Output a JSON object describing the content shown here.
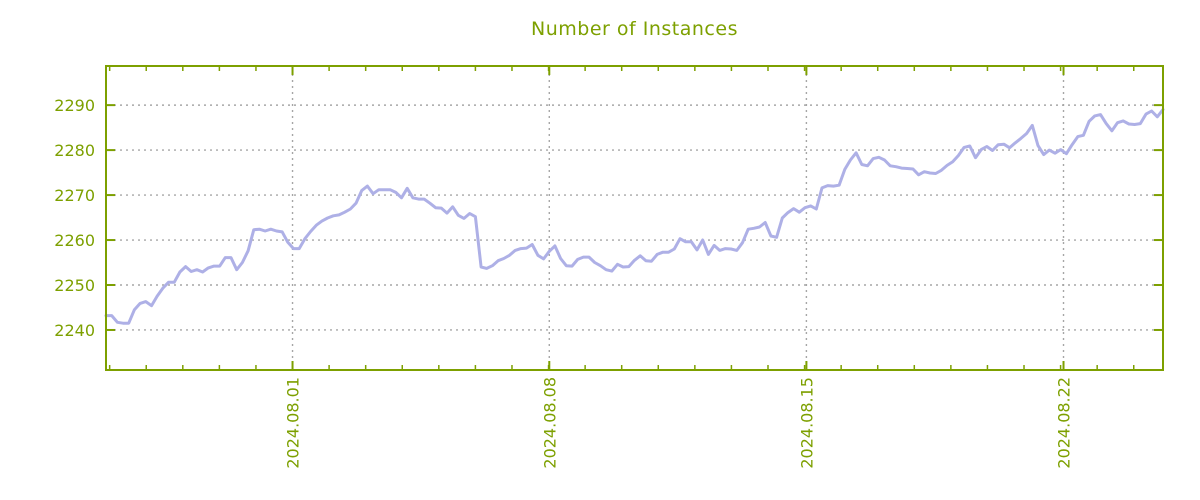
{
  "header": {
    "title": "Number of Instances"
  },
  "chart_data": {
    "type": "line",
    "title": "Number of Instances",
    "legend": "none",
    "grid": "dotted",
    "colors": {
      "title": "#7da000",
      "axis": "#7da000",
      "tick_label": "#7da000",
      "grid": "#a6a6a6",
      "line": "#aeb0e6",
      "background": "#ffffff"
    },
    "y_axis": {
      "tick_labels": [
        "2240",
        "2250",
        "2260",
        "2270",
        "2280",
        "2290"
      ],
      "tick_values": [
        2240,
        2250,
        2260,
        2270,
        2280,
        2290
      ],
      "range": [
        2231.1,
        2298.7
      ]
    },
    "x_axis": {
      "tick_labels": [
        "2024.08.01",
        "2024.08.08",
        "2024.08.15",
        "2024.08.22"
      ],
      "tick_positions_days": [
        5.1,
        12.12,
        19.15,
        26.18
      ],
      "minor_tick_every_days": 1,
      "minor_tick_start_day": 0.1,
      "range_days": [
        0,
        28.9
      ]
    },
    "series": [
      {
        "name": "instances",
        "color": "#aeb0e6",
        "values": [
          2243.2,
          2243.2,
          2241.7,
          2241.5,
          2241.5,
          2244.5,
          2245.9,
          2246.3,
          2245.4,
          2247.5,
          2249.3,
          2250.6,
          2250.6,
          2252.9,
          2254.1,
          2253.0,
          2253.4,
          2252.9,
          2253.8,
          2254.2,
          2254.2,
          2256.1,
          2256.1,
          2253.4,
          2255.0,
          2257.6,
          2262.3,
          2262.4,
          2262.0,
          2262.4,
          2262.0,
          2261.8,
          2259.5,
          2258.1,
          2258.1,
          2260.3,
          2261.9,
          2263.3,
          2264.2,
          2264.9,
          2265.4,
          2265.6,
          2266.2,
          2266.9,
          2268.2,
          2271.0,
          2272.0,
          2270.3,
          2271.2,
          2271.2,
          2271.2,
          2270.6,
          2269.4,
          2271.5,
          2269.4,
          2269.1,
          2269.1,
          2268.2,
          2267.2,
          2267.1,
          2266.0,
          2267.4,
          2265.5,
          2264.8,
          2265.9,
          2265.2,
          2254.0,
          2253.7,
          2254.3,
          2255.4,
          2255.9,
          2256.6,
          2257.7,
          2258.1,
          2258.2,
          2259.0,
          2256.6,
          2255.8,
          2257.5,
          2258.7,
          2255.9,
          2254.3,
          2254.2,
          2255.7,
          2256.2,
          2256.2,
          2255.0,
          2254.3,
          2253.4,
          2253.1,
          2254.6,
          2254.0,
          2254.1,
          2255.5,
          2256.5,
          2255.4,
          2255.3,
          2256.8,
          2257.3,
          2257.3,
          2258.0,
          2260.3,
          2259.6,
          2259.6,
          2257.8,
          2260.0,
          2256.8,
          2258.8,
          2257.7,
          2258.1,
          2258.0,
          2257.7,
          2259.4,
          2262.4,
          2262.6,
          2262.9,
          2263.9,
          2260.9,
          2260.6,
          2264.9,
          2266.1,
          2267.0,
          2266.2,
          2267.2,
          2267.6,
          2266.9,
          2271.6,
          2272.1,
          2272.0,
          2272.2,
          2275.7,
          2277.8,
          2279.4,
          2276.8,
          2276.5,
          2278.1,
          2278.4,
          2277.8,
          2276.5,
          2276.3,
          2276.0,
          2275.9,
          2275.8,
          2274.5,
          2275.2,
          2274.9,
          2274.8,
          2275.5,
          2276.6,
          2277.4,
          2278.8,
          2280.6,
          2280.9,
          2278.3,
          2280.1,
          2280.8,
          2279.9,
          2281.2,
          2281.3,
          2280.5,
          2281.6,
          2282.6,
          2283.7,
          2285.5,
          2281.0,
          2279.0,
          2280.0,
          2279.3,
          2280.1,
          2279.2,
          2281.2,
          2283.0,
          2283.3,
          2286.4,
          2287.6,
          2287.9,
          2285.9,
          2284.3,
          2286.1,
          2286.5,
          2285.8,
          2285.7,
          2285.9,
          2288.0,
          2288.7,
          2287.4,
          2289.0
        ]
      }
    ]
  }
}
